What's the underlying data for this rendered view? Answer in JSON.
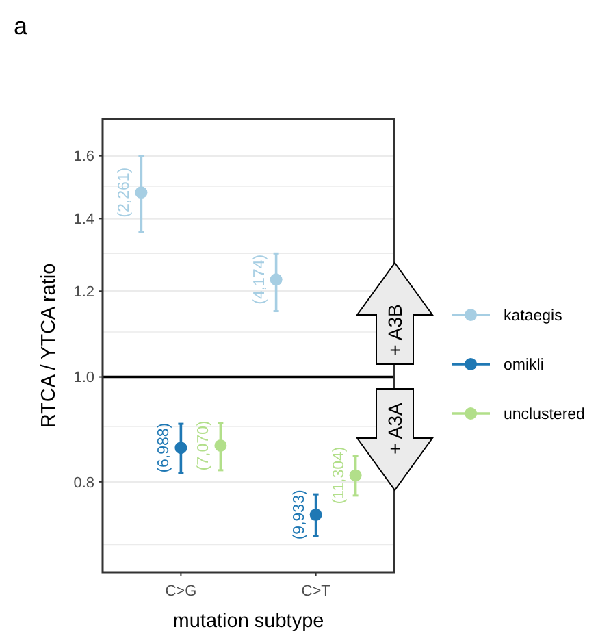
{
  "chart_data": {
    "type": "scatter",
    "title": "a",
    "xlabel": "mutation subtype",
    "ylabel": "RTCA / YTCA ratio",
    "categories": [
      "C>G",
      "C>T"
    ],
    "log": "y",
    "ylim": [
      0.66,
      1.73
    ],
    "yticks": [
      {
        "value": 0.7,
        "label": null
      },
      0.8,
      {
        "value": 0.9,
        "label": null
      },
      {
        "value": 1,
        "label": "1.0"
      },
      {
        "value": 1.1,
        "label": null
      },
      1.2,
      {
        "value": 1.3,
        "label": null
      },
      1.4,
      {
        "value": 1.5,
        "label": null
      },
      1.6
    ],
    "grid": "y",
    "legend": "right",
    "marker": "circle",
    "ref_lines": [
      {
        "axis": "y",
        "value": 1,
        "color": "#000000"
      }
    ],
    "annotations": [
      "+ A3B",
      "+ A3A",
      "(2,261)",
      "(4,174)",
      "(6,988)",
      "(9,933)",
      "(7,070)",
      "(11,304)"
    ],
    "series": [
      {
        "name": "kataegis",
        "color": "#a6cee3",
        "values": [
          1.48,
          1.23
        ],
        "errors": [
          [
            1.36,
            1.6
          ],
          [
            1.15,
            1.3
          ]
        ]
      },
      {
        "name": "omikli",
        "color": "#1f78b4",
        "values": [
          0.86,
          0.746
        ],
        "errors": [
          [
            0.815,
            0.905
          ],
          [
            0.713,
            0.779
          ]
        ]
      },
      {
        "name": "unclustered",
        "color": "#b2df8a",
        "values": [
          0.864,
          0.811
        ],
        "errors": [
          [
            0.82,
            0.907
          ],
          [
            0.777,
            0.845
          ]
        ]
      }
    ]
  }
}
